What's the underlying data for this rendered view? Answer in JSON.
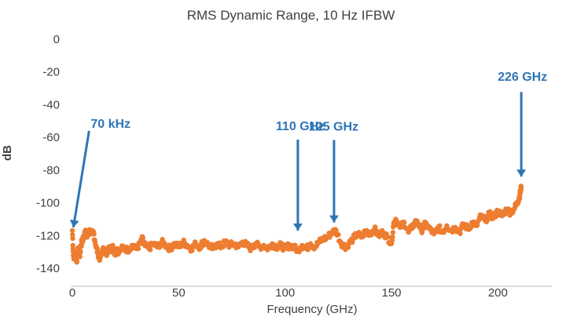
{
  "chart_data": {
    "type": "scatter",
    "title": "RMS Dynamic Range, 10 Hz IFBW",
    "xlabel": "Frequency (GHz)",
    "ylabel": "dB",
    "xlim": [
      0,
      225
    ],
    "ylim": [
      -140,
      0
    ],
    "xticks": [
      0,
      50,
      100,
      150,
      200
    ],
    "yticks": [
      0,
      -20,
      -40,
      -60,
      -80,
      -100,
      -120,
      -140
    ],
    "xtick_labels": [
      "0",
      "50",
      "100",
      "150",
      "200"
    ],
    "ytick_labels": [
      "0",
      "-20",
      "-40",
      "-60",
      "-80",
      "-100",
      "-120",
      "-140"
    ],
    "grid": false,
    "marker_color": "#ED7D31",
    "annotation_color": "#2E75B6",
    "series": [
      {
        "points": [
          [
            0.0,
            -117
          ],
          [
            0.5,
            -132
          ],
          [
            1.0,
            -134
          ],
          [
            1.5,
            -131
          ],
          [
            2.0,
            -136
          ],
          [
            2.5,
            -130
          ],
          [
            3.0,
            -128
          ],
          [
            3.5,
            -133
          ],
          [
            4.0,
            -126
          ],
          [
            4.5,
            -124
          ],
          [
            5.0,
            -122
          ],
          [
            5.5,
            -120
          ],
          [
            6.0,
            -118
          ],
          [
            7.0,
            -121
          ],
          [
            8.0,
            -117
          ],
          [
            9.0,
            -119
          ],
          [
            10.0,
            -118
          ],
          [
            11.0,
            -126
          ],
          [
            12.0,
            -131
          ],
          [
            13.0,
            -134
          ],
          [
            14.0,
            -130
          ],
          [
            15.0,
            -128
          ],
          [
            16.0,
            -132
          ],
          [
            17.0,
            -127
          ],
          [
            18.0,
            -129
          ],
          [
            19.0,
            -126
          ],
          [
            20.0,
            -131
          ],
          [
            21.0,
            -128
          ],
          [
            22.0,
            -130
          ],
          [
            24.0,
            -127
          ],
          [
            26.0,
            -129
          ],
          [
            28.0,
            -126
          ],
          [
            30.0,
            -128
          ],
          [
            32.0,
            -125
          ],
          [
            33.0,
            -122
          ],
          [
            34.0,
            -126
          ],
          [
            36.0,
            -128
          ],
          [
            38.0,
            -125
          ],
          [
            40.0,
            -127
          ],
          [
            42.0,
            -124
          ],
          [
            44.0,
            -126
          ],
          [
            46.0,
            -128
          ],
          [
            48.0,
            -125
          ],
          [
            50.0,
            -127
          ],
          [
            52.0,
            -124
          ],
          [
            54.0,
            -126
          ],
          [
            56.0,
            -128
          ],
          [
            58.0,
            -125
          ],
          [
            60.0,
            -127
          ],
          [
            62.0,
            -123
          ],
          [
            64.0,
            -126
          ],
          [
            66.0,
            -128
          ],
          [
            68.0,
            -125
          ],
          [
            70.0,
            -127
          ],
          [
            72.0,
            -124
          ],
          [
            74.0,
            -126
          ],
          [
            76.0,
            -125
          ],
          [
            78.0,
            -127
          ],
          [
            80.0,
            -124
          ],
          [
            82.0,
            -126
          ],
          [
            84.0,
            -128
          ],
          [
            86.0,
            -125
          ],
          [
            88.0,
            -127
          ],
          [
            90.0,
            -126
          ],
          [
            92.0,
            -128
          ],
          [
            94.0,
            -125
          ],
          [
            96.0,
            -127
          ],
          [
            98.0,
            -126
          ],
          [
            100.0,
            -128
          ],
          [
            102.0,
            -126
          ],
          [
            104.0,
            -127
          ],
          [
            106.0,
            -129
          ],
          [
            108.0,
            -126
          ],
          [
            110.0,
            -128
          ],
          [
            112.0,
            -125
          ],
          [
            114.0,
            -127
          ],
          [
            116.0,
            -124
          ],
          [
            118.0,
            -122
          ],
          [
            120.0,
            -121
          ],
          [
            122.0,
            -118
          ],
          [
            124.0,
            -117
          ],
          [
            126.0,
            -124
          ],
          [
            128.0,
            -127
          ],
          [
            130.0,
            -125
          ],
          [
            132.0,
            -122
          ],
          [
            134.0,
            -119
          ],
          [
            136.0,
            -121
          ],
          [
            138.0,
            -117
          ],
          [
            140.0,
            -119
          ],
          [
            142.0,
            -116
          ],
          [
            144.0,
            -120
          ],
          [
            146.0,
            -118
          ],
          [
            148.0,
            -121
          ],
          [
            150.0,
            -125
          ],
          [
            151.0,
            -113
          ],
          [
            152.0,
            -110
          ],
          [
            154.0,
            -115
          ],
          [
            156.0,
            -112
          ],
          [
            158.0,
            -118
          ],
          [
            160.0,
            -114
          ],
          [
            162.0,
            -111
          ],
          [
            164.0,
            -117
          ],
          [
            166.0,
            -113
          ],
          [
            168.0,
            -116
          ],
          [
            170.0,
            -119
          ],
          [
            172.0,
            -115
          ],
          [
            174.0,
            -118
          ],
          [
            176.0,
            -114
          ],
          [
            178.0,
            -117
          ],
          [
            180.0,
            -115
          ],
          [
            182.0,
            -118
          ],
          [
            184.0,
            -113
          ],
          [
            186.0,
            -116
          ],
          [
            188.0,
            -112
          ],
          [
            190.0,
            -114
          ],
          [
            192.0,
            -108
          ],
          [
            194.0,
            -111
          ],
          [
            196.0,
            -107
          ],
          [
            198.0,
            -109
          ],
          [
            200.0,
            -105
          ],
          [
            202.0,
            -108
          ],
          [
            204.0,
            -104
          ],
          [
            206.0,
            -106
          ],
          [
            208.0,
            -103
          ],
          [
            209.0,
            -100
          ],
          [
            210.0,
            -97
          ],
          [
            210.5,
            -94
          ],
          [
            211.0,
            -90
          ]
        ]
      }
    ],
    "annotations": [
      {
        "text": "70 kHz",
        "x": 0.5,
        "y": -115
      },
      {
        "text": "110 GHz",
        "x": 106,
        "y": -117
      },
      {
        "text": "125 GHz",
        "x": 123,
        "y": -112
      },
      {
        "text": "226 GHz",
        "x": 211,
        "y": -84
      }
    ]
  }
}
